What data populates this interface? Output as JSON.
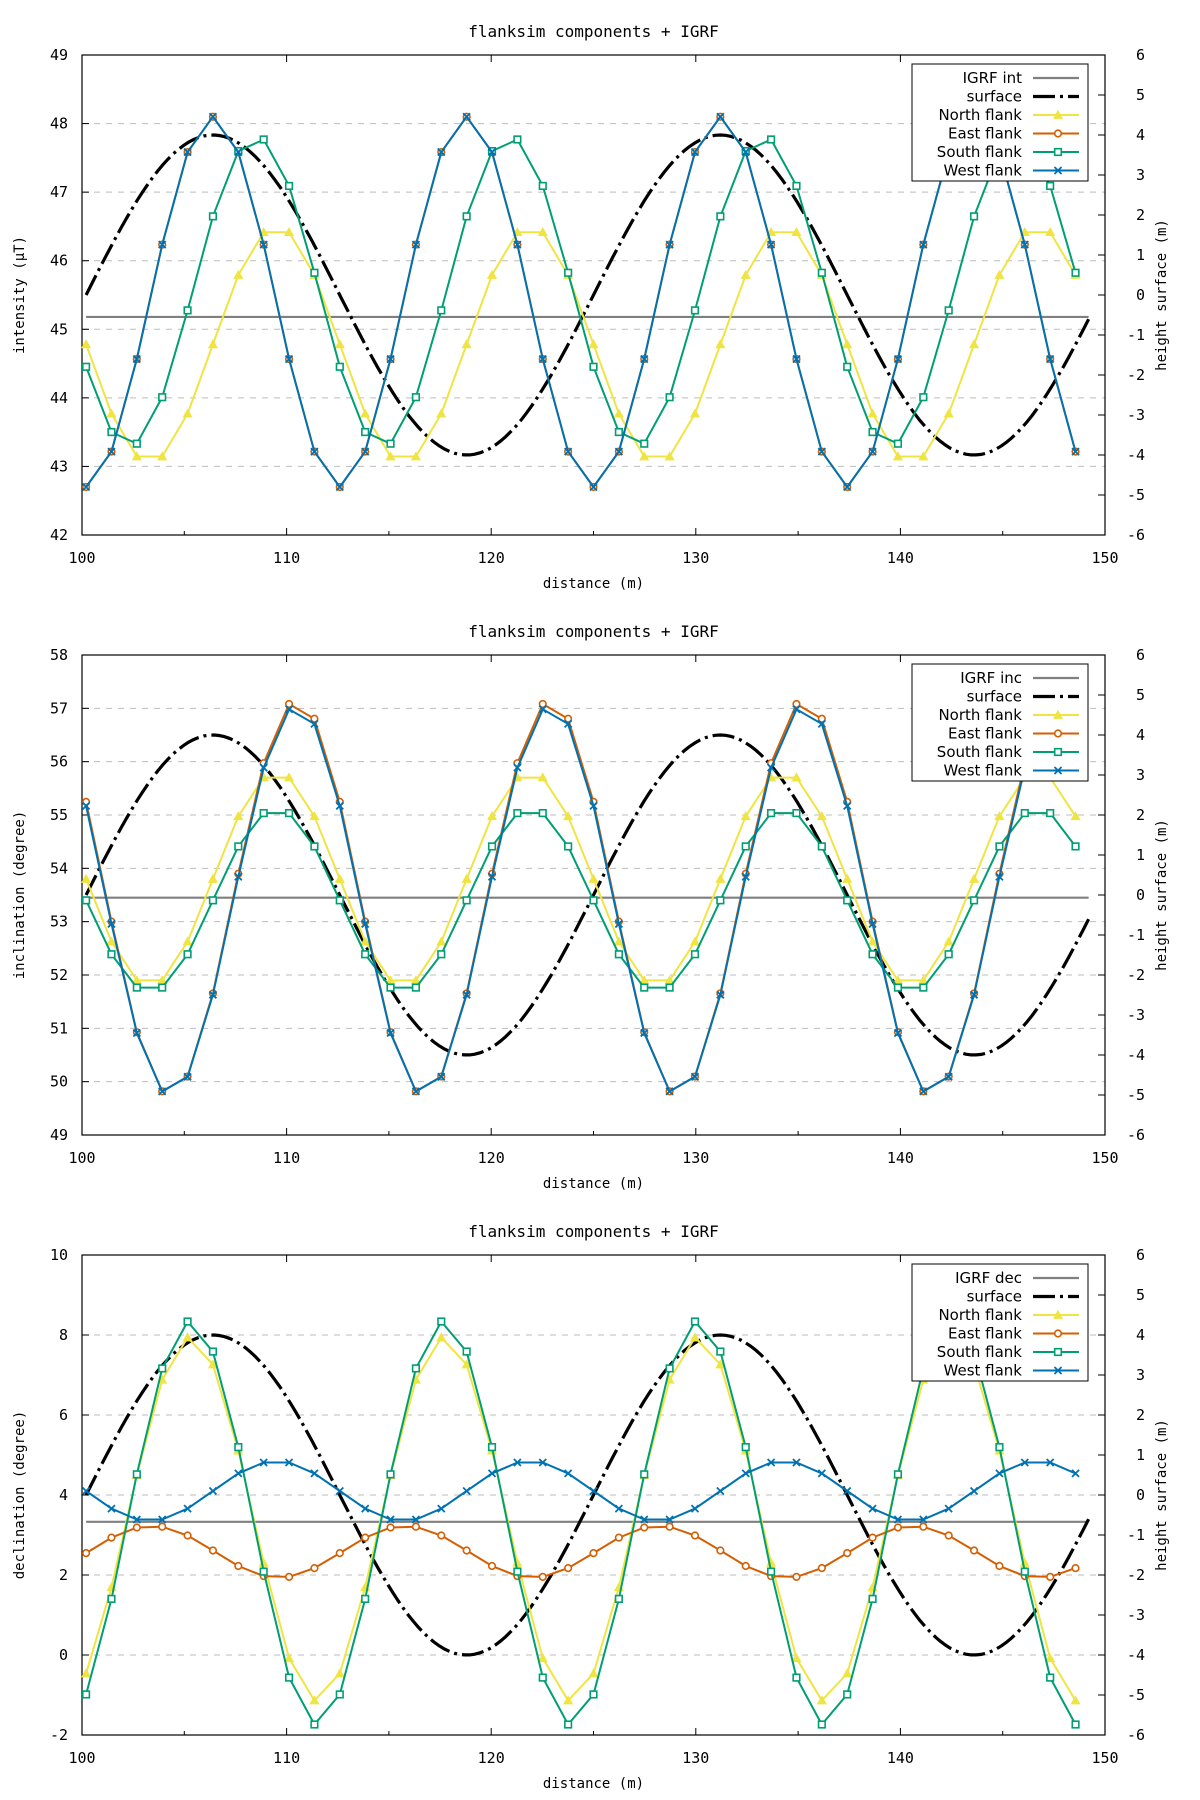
{
  "colors": {
    "igrf": "#7f7f7f",
    "surface": "#000000",
    "north": "#f0e442",
    "east": "#d55e00",
    "south": "#009e73",
    "west": "#0072b2"
  },
  "chart_data": [
    {
      "type": "line",
      "title": "flanksim components + IGRF",
      "xlabel": "distance (m)",
      "ylabel": "intensity (μT)",
      "y2label": "height surface (m)",
      "xlim": [
        100,
        150
      ],
      "ylim": [
        42,
        49
      ],
      "y2lim": [
        -6,
        6
      ],
      "xticks": [
        100,
        110,
        120,
        130,
        140,
        150
      ],
      "yticks": [
        42,
        43,
        44,
        45,
        46,
        47,
        48,
        49
      ],
      "y2ticks": [
        -6,
        -5,
        -4,
        -3,
        -2,
        -1,
        0,
        1,
        2,
        3,
        4,
        5,
        6
      ],
      "grid": true,
      "legend_position": "top-right",
      "igrf": {
        "name": "IGRF int",
        "value": 45.18
      },
      "surface": {
        "name": "surface",
        "x0": 100.2,
        "period": 24.8,
        "amplitude": 4.0
      },
      "x_start": 100.2,
      "x_step": 1.24,
      "series": [
        {
          "name": "North flank",
          "key": "north",
          "mean": 44.78,
          "amplitude": 1.72,
          "phase": 6.2,
          "marker": "triangle"
        },
        {
          "name": "East flank",
          "key": "east",
          "mean": 45.4,
          "amplitude": 2.7,
          "phase": 3.1,
          "marker": "circle"
        },
        {
          "name": "South flank",
          "key": "south",
          "mean": 45.55,
          "amplitude": 2.26,
          "phase": 5.2,
          "marker": "square"
        },
        {
          "name": "West flank",
          "key": "west",
          "mean": 45.4,
          "amplitude": 2.7,
          "phase": 3.1,
          "marker": "x"
        }
      ]
    },
    {
      "type": "line",
      "title": "flanksim components + IGRF",
      "xlabel": "distance (m)",
      "ylabel": "inclination (degree)",
      "y2label": "height surface (m)",
      "xlim": [
        100,
        150
      ],
      "ylim": [
        49,
        58
      ],
      "y2lim": [
        -6,
        6
      ],
      "xticks": [
        100,
        110,
        120,
        130,
        140,
        150
      ],
      "yticks": [
        49,
        50,
        51,
        52,
        53,
        54,
        55,
        56,
        57,
        58
      ],
      "y2ticks": [
        -6,
        -5,
        -4,
        -3,
        -2,
        -1,
        0,
        1,
        2,
        3,
        4,
        5,
        6
      ],
      "grid": true,
      "legend_position": "top-right",
      "igrf": {
        "name": "IGRF inc",
        "value": 53.45
      },
      "surface": {
        "name": "surface",
        "x0": 100.2,
        "period": 24.8,
        "amplitude": 4.0
      },
      "x_start": 100.2,
      "x_step": 1.24,
      "series": [
        {
          "name": "North flank",
          "key": "north",
          "mean": 53.8,
          "amplitude": 2.0,
          "phase": 6.2,
          "marker": "triangle"
        },
        {
          "name": "East flank",
          "key": "east",
          "mean": 53.45,
          "amplitude": 3.7,
          "phase": 7.2,
          "marker": "circle"
        },
        {
          "name": "South flank",
          "key": "south",
          "mean": 53.4,
          "amplitude": 1.72,
          "phase": 6.2,
          "marker": "square"
        },
        {
          "name": "West flank",
          "key": "west",
          "mean": 53.4,
          "amplitude": 3.65,
          "phase": 7.2,
          "marker": "x"
        }
      ]
    },
    {
      "type": "line",
      "title": "flanksim components + IGRF",
      "xlabel": "distance (m)",
      "ylabel": "declination (degree)",
      "y2label": "height surface (m)",
      "xlim": [
        100,
        150
      ],
      "ylim": [
        -2,
        10
      ],
      "y2lim": [
        -6,
        6
      ],
      "xticks": [
        100,
        110,
        120,
        130,
        140,
        150
      ],
      "yticks": [
        -2,
        0,
        2,
        4,
        6,
        8,
        10
      ],
      "y2ticks": [
        -6,
        -5,
        -4,
        -3,
        -2,
        -1,
        0,
        1,
        2,
        3,
        4,
        5,
        6
      ],
      "grid": true,
      "legend_position": "top-right",
      "igrf": {
        "name": "IGRF dec",
        "value": 3.33
      },
      "surface": {
        "name": "surface",
        "x0": 100.2,
        "period": 24.8,
        "amplitude": 4.0
      },
      "x_start": 100.2,
      "x_step": 1.24,
      "series": [
        {
          "name": "North flank",
          "key": "north",
          "mean": 3.4,
          "amplitude": 4.55,
          "phase": 2.0,
          "marker": "triangle"
        },
        {
          "name": "East flank",
          "key": "east",
          "mean": 2.58,
          "amplitude": 0.65,
          "phase": 12.5,
          "marker": "circle"
        },
        {
          "name": "South flank",
          "key": "south",
          "mean": 3.3,
          "amplitude": 5.05,
          "phase": 2.0,
          "marker": "square"
        },
        {
          "name": "West flank",
          "key": "west",
          "mean": 4.1,
          "amplitude": 0.75,
          "phase": 6.2,
          "marker": "x"
        }
      ]
    }
  ]
}
